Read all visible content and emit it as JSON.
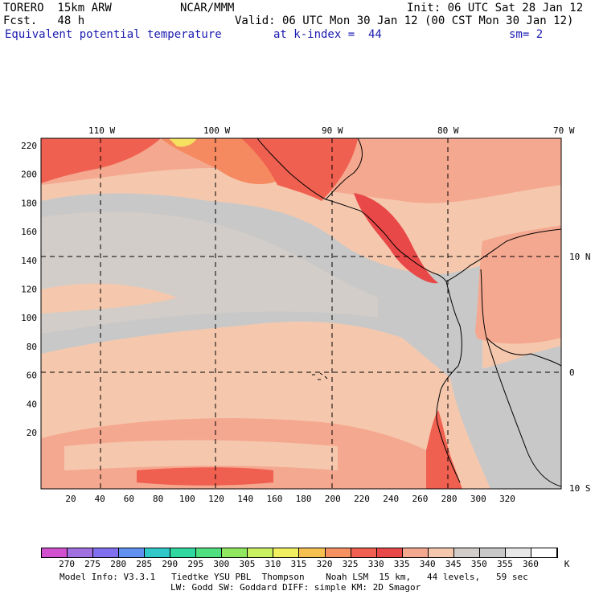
{
  "header": {
    "model": "TORERO  15km ARW",
    "org": "NCAR/MMM",
    "init": "Init: 06 UTC Sat 28 Jan 12",
    "fcst": "Fcst.   48 h",
    "valid": "Valid: 06 UTC Mon 30 Jan 12 (00 CST Mon 30 Jan 12)",
    "field": "Equivalent potential temperature",
    "level": "at k-index =  44",
    "smooth": "sm= 2"
  },
  "map": {
    "top_lon_labels": [
      "110 W",
      "100 W",
      "90 W",
      "80 W",
      "70 W"
    ],
    "right_lat_labels": [
      "10 N",
      "0",
      "10 S"
    ],
    "left_grid_labels": [
      "220",
      "200",
      "180",
      "160",
      "140",
      "120",
      "100",
      "80",
      "60",
      "40",
      "20"
    ],
    "bottom_grid_labels": [
      "20",
      "40",
      "60",
      "80",
      "100",
      "120",
      "140",
      "160",
      "180",
      "200",
      "220",
      "240",
      "260",
      "280",
      "300",
      "320"
    ],
    "colors": {
      "ocean_low": "#f5c8ae",
      "gray": "#c8c8c8",
      "gray_light": "#d2cdc8",
      "warm": "#f5a890",
      "hot": "#f06050",
      "hotter": "#e84848",
      "orange": "#f58a60",
      "yellow": "#f5e060",
      "coast": "#000000"
    }
  },
  "colorbar": {
    "unit": "K",
    "labels": [
      "270",
      "275",
      "280",
      "285",
      "290",
      "295",
      "300",
      "305",
      "310",
      "315",
      "320",
      "325",
      "330",
      "335",
      "340",
      "345",
      "350",
      "355",
      "360"
    ],
    "colors": [
      "#d050d0",
      "#a070e0",
      "#8070f0",
      "#6090f0",
      "#30c8c8",
      "#30d8a0",
      "#50e080",
      "#90e860",
      "#c8f060",
      "#f0f060",
      "#f5c050",
      "#f59060",
      "#f06050",
      "#e84848",
      "#f5a890",
      "#f5c8ae",
      "#d2cdc8",
      "#c8c8c8",
      "#e8e8e8",
      "#ffffff"
    ]
  },
  "footer": {
    "line1": "Model Info: V3.3.1   Tiedtke YSU PBL  Thompson    Noah LSM  15 km,   44 levels,   59 sec",
    "line2": "LW: Godd SW: Goddard DIFF: simple KM: 2D Smagor"
  }
}
